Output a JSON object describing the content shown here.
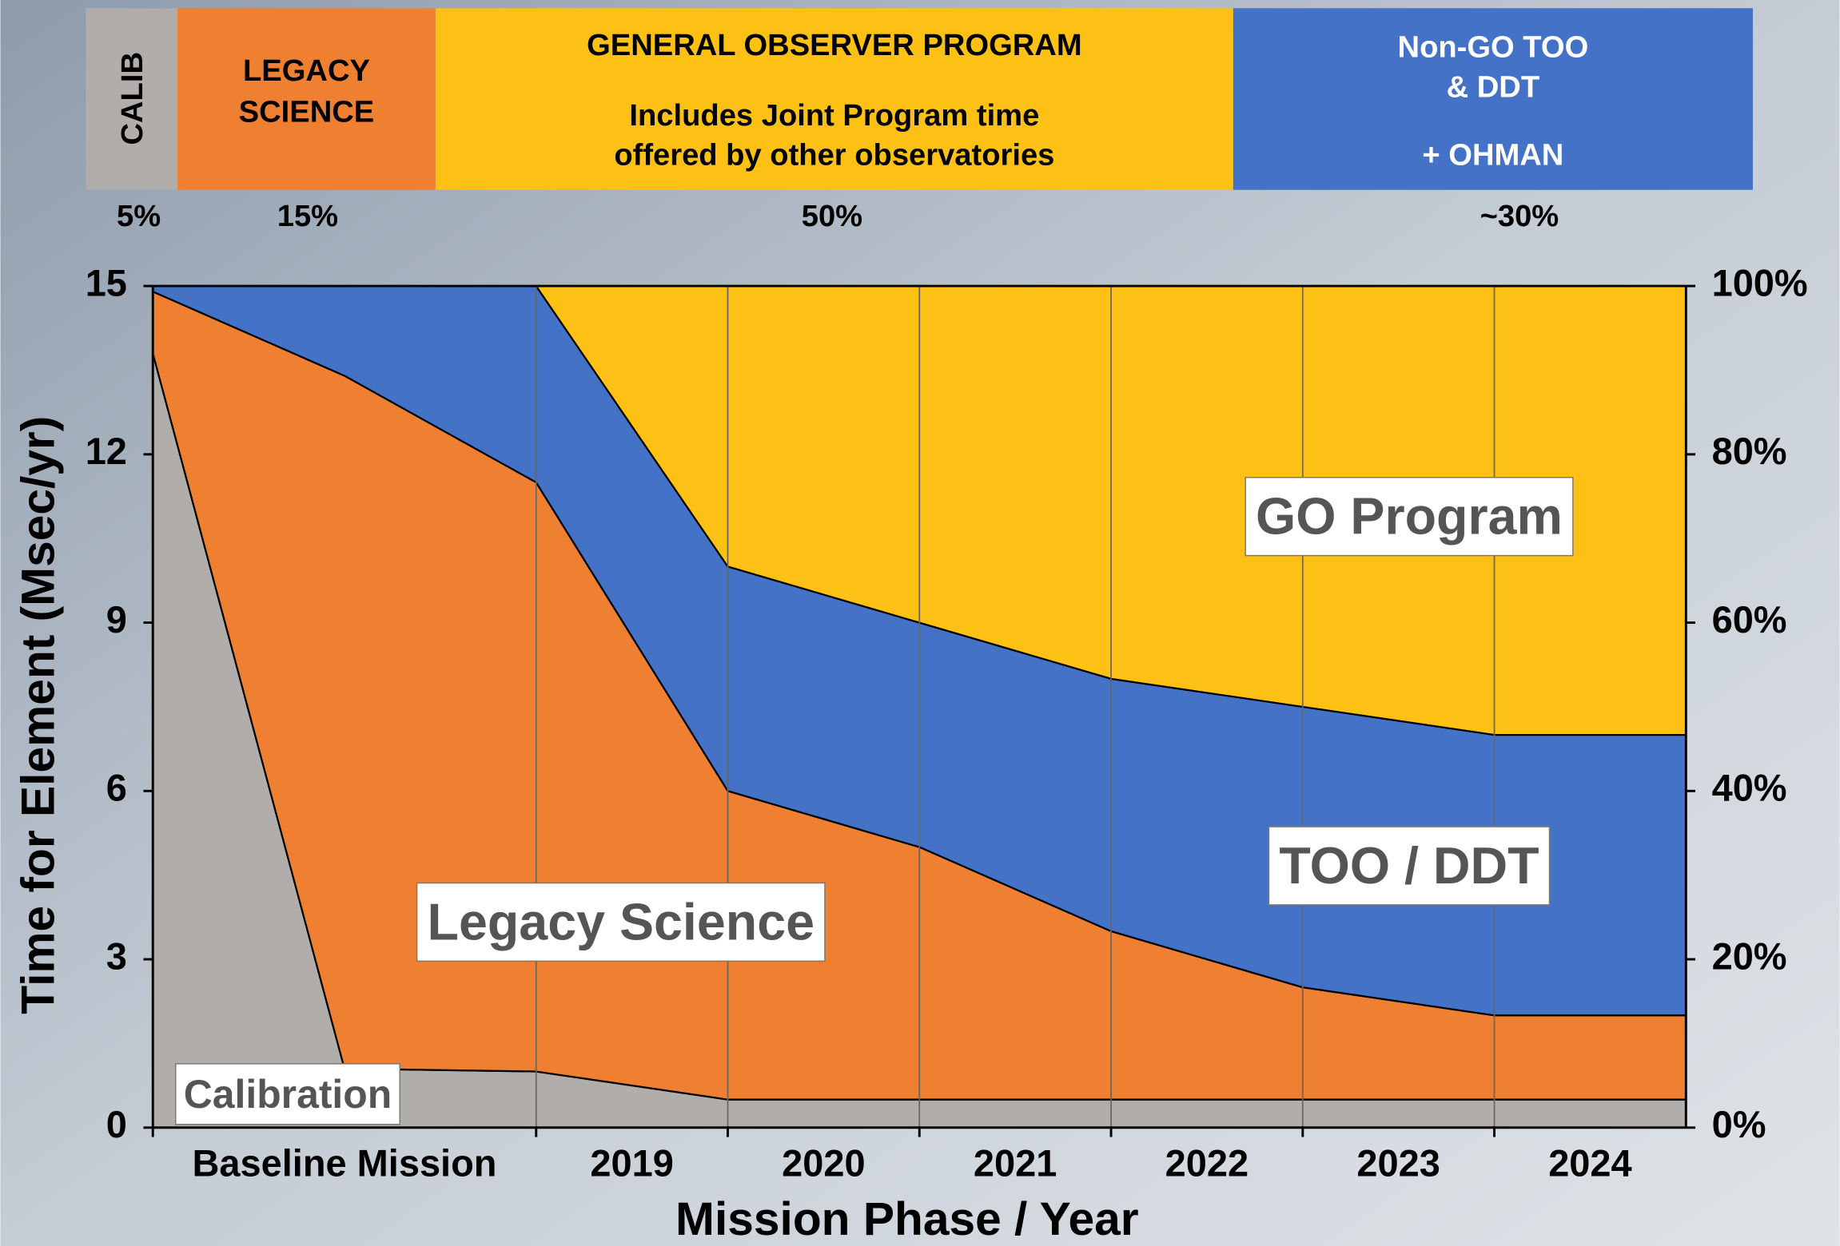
{
  "banner": {
    "sections": [
      {
        "lines": [
          "CALIB"
        ],
        "share": "5%",
        "color": "#b1adaa"
      },
      {
        "lines": [
          "LEGACY",
          "SCIENCE"
        ],
        "share": "15%",
        "color": "#ef7f31"
      },
      {
        "lines": [
          "GENERAL OBSERVER PROGRAM",
          "Includes Joint Program time",
          "offered by other observatories"
        ],
        "share": "50%",
        "color": "#fdc014"
      },
      {
        "lines": [
          "Non-GO TOO",
          "& DDT",
          "+ OHMAN"
        ],
        "share": "~30%",
        "color": "#4472c6"
      }
    ]
  },
  "chart_data": {
    "type": "stacked_area",
    "x_label": "Mission Phase / Year",
    "y_label": "Time for Element (Msec/yr)",
    "categories": [
      "Baseline Mission",
      "2019",
      "2020",
      "2021",
      "2022",
      "2023",
      "2024"
    ],
    "x": [
      0,
      1,
      2,
      3,
      4,
      5,
      6,
      7,
      8
    ],
    "xlim": [
      0,
      8
    ],
    "series": [
      {
        "name": "Calibration",
        "color": "#b1adaa",
        "values": [
          13.8,
          1.05,
          1.0,
          0.5,
          0.5,
          0.5,
          0.5,
          0.5,
          0.5
        ]
      },
      {
        "name": "Legacy Science",
        "color": "#ef7f31",
        "values": [
          1.1,
          12.35,
          10.5,
          5.5,
          4.5,
          3.0,
          2.0,
          1.5,
          1.5
        ]
      },
      {
        "name": "TOO / DDT",
        "color": "#4472c6",
        "values": [
          0.1,
          1.6,
          3.5,
          4.0,
          4.0,
          4.5,
          5.0,
          5.0,
          5.0
        ]
      },
      {
        "name": "GO Program",
        "color": "#fdc014",
        "values": [
          0,
          0,
          0,
          5.0,
          6.0,
          7.0,
          7.5,
          8.0,
          8.0
        ]
      }
    ],
    "ylim": [
      0,
      15
    ],
    "yticks": [
      0,
      3,
      6,
      9,
      12,
      15
    ],
    "y2lim": [
      0,
      100
    ],
    "y2ticks": [
      {
        "value": 0,
        "label": "0%"
      },
      {
        "value": 20,
        "label": "20%"
      },
      {
        "value": 40,
        "label": "40%"
      },
      {
        "value": 60,
        "label": "60%"
      },
      {
        "value": 80,
        "label": "80%"
      },
      {
        "value": 100,
        "label": "100%"
      }
    ]
  }
}
